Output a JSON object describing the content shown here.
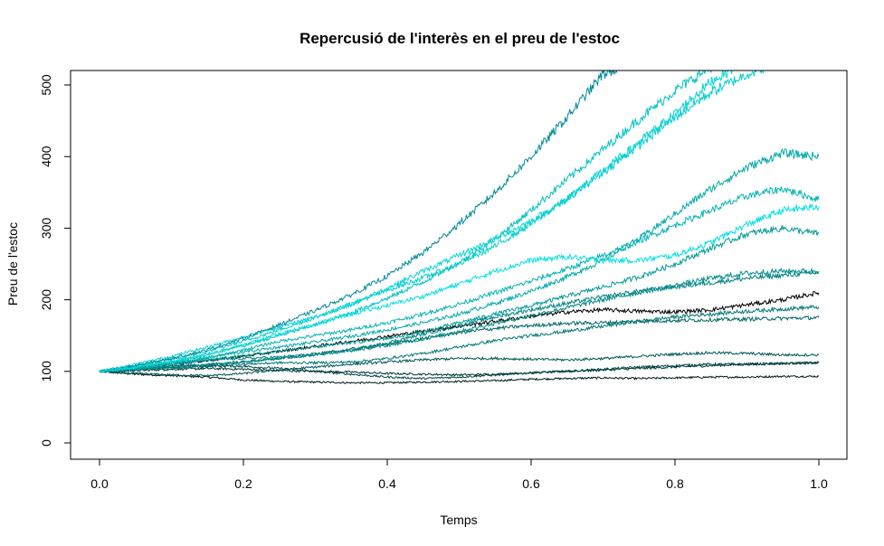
{
  "chart_data": {
    "type": "line",
    "title": "Repercusió de l'interès en el preu de l'estoc",
    "xlabel": "Temps",
    "ylabel": "Preu de l'estoc",
    "xlim": [
      0.0,
      1.0
    ],
    "ylim": [
      0,
      520
    ],
    "x_ticks": [
      "0.0",
      "0.2",
      "0.4",
      "0.6",
      "0.8",
      "1.0"
    ],
    "y_ticks": [
      "0",
      "100",
      "200",
      "300",
      "400",
      "500"
    ],
    "grid": false,
    "legend": "none",
    "x": [
      0.0,
      0.05,
      0.1,
      0.15,
      0.2,
      0.25,
      0.3,
      0.35,
      0.4,
      0.45,
      0.5,
      0.55,
      0.6,
      0.65,
      0.7,
      0.75,
      0.8,
      0.85,
      0.9,
      0.95,
      1.0
    ],
    "series": [
      {
        "color": "#001a1a",
        "values": [
          100,
          96,
          94,
          92,
          88,
          86,
          85,
          84,
          84,
          85,
          86,
          87,
          89,
          90,
          91,
          90,
          91,
          92,
          92,
          93,
          93
        ]
      },
      {
        "color": "#003333",
        "values": [
          100,
          101,
          103,
          104,
          103,
          101,
          100,
          99,
          97,
          96,
          95,
          96,
          98,
          100,
          102,
          104,
          106,
          108,
          110,
          111,
          112
        ]
      },
      {
        "color": "#004444",
        "values": [
          100,
          104,
          107,
          108,
          107,
          104,
          100,
          96,
          92,
          90,
          92,
          95,
          98,
          100,
          103,
          106,
          108,
          110,
          110,
          111,
          112
        ]
      },
      {
        "color": "#005555",
        "values": [
          100,
          97,
          95,
          94,
          97,
          102,
          106,
          110,
          113,
          116,
          118,
          118,
          117,
          116,
          118,
          121,
          124,
          126,
          125,
          123,
          123
        ]
      },
      {
        "color": "#006666",
        "values": [
          100,
          103,
          106,
          109,
          113,
          118,
          124,
          131,
          138,
          146,
          154,
          160,
          164,
          167,
          168,
          170,
          171,
          172,
          173,
          174,
          175
        ]
      },
      {
        "color": "#000000",
        "values": [
          100,
          105,
          110,
          115,
          121,
          128,
          135,
          142,
          149,
          156,
          163,
          170,
          177,
          183,
          186,
          184,
          183,
          186,
          193,
          200,
          210
        ]
      },
      {
        "color": "#007777",
        "values": [
          100,
          102,
          104,
          107,
          110,
          112,
          112,
          113,
          118,
          125,
          134,
          143,
          150,
          156,
          163,
          170,
          176,
          180,
          184,
          187,
          190
        ]
      },
      {
        "color": "#008080",
        "values": [
          100,
          107,
          112,
          116,
          118,
          120,
          124,
          129,
          140,
          152,
          164,
          176,
          186,
          195,
          204,
          212,
          218,
          224,
          230,
          234,
          238
        ]
      },
      {
        "color": "#008b8b",
        "values": [
          100,
          103,
          107,
          110,
          114,
          118,
          123,
          129,
          136,
          145,
          156,
          167,
          178,
          189,
          200,
          210,
          220,
          230,
          237,
          240,
          240
        ]
      },
      {
        "color": "#009999",
        "values": [
          100,
          104,
          110,
          116,
          122,
          128,
          134,
          140,
          146,
          155,
          168,
          180,
          192,
          205,
          218,
          232,
          250,
          272,
          292,
          300,
          292
        ]
      },
      {
        "color": "#00a8a8",
        "values": [
          100,
          106,
          113,
          120,
          127,
          134,
          141,
          149,
          158,
          168,
          180,
          195,
          212,
          232,
          255,
          285,
          320,
          355,
          385,
          405,
          400
        ]
      },
      {
        "color": "#00b3b3",
        "values": [
          100,
          104,
          110,
          118,
          130,
          142,
          150,
          158,
          168,
          180,
          194,
          210,
          226,
          243,
          262,
          282,
          304,
          325,
          345,
          355,
          340
        ]
      },
      {
        "color": "#00c2c2",
        "values": [
          100,
          106,
          114,
          124,
          136,
          150,
          165,
          182,
          202,
          225,
          252,
          285,
          325,
          368,
          410,
          452,
          492,
          525,
          530,
          535,
          535
        ]
      },
      {
        "color": "#00cccc",
        "values": [
          100,
          108,
          117,
          128,
          142,
          158,
          175,
          194,
          213,
          231,
          250,
          275,
          306,
          341,
          378,
          416,
          455,
          490,
          515,
          535,
          535
        ]
      },
      {
        "color": "#00d4d4",
        "values": [
          100,
          110,
          121,
          134,
          148,
          162,
          176,
          194,
          216,
          240,
          262,
          285,
          310,
          340,
          380,
          420,
          460,
          505,
          535,
          535,
          535
        ]
      },
      {
        "color": "#008a99",
        "values": [
          100,
          108,
          118,
          130,
          146,
          165,
          185,
          207,
          233,
          266,
          306,
          350,
          400,
          455,
          515,
          535,
          535,
          535,
          535,
          535,
          535
        ]
      },
      {
        "color": "#00e0e0",
        "values": [
          100,
          106,
          113,
          123,
          137,
          152,
          166,
          180,
          192,
          205,
          222,
          240,
          255,
          260,
          255,
          255,
          262,
          280,
          305,
          325,
          330
        ]
      }
    ]
  }
}
